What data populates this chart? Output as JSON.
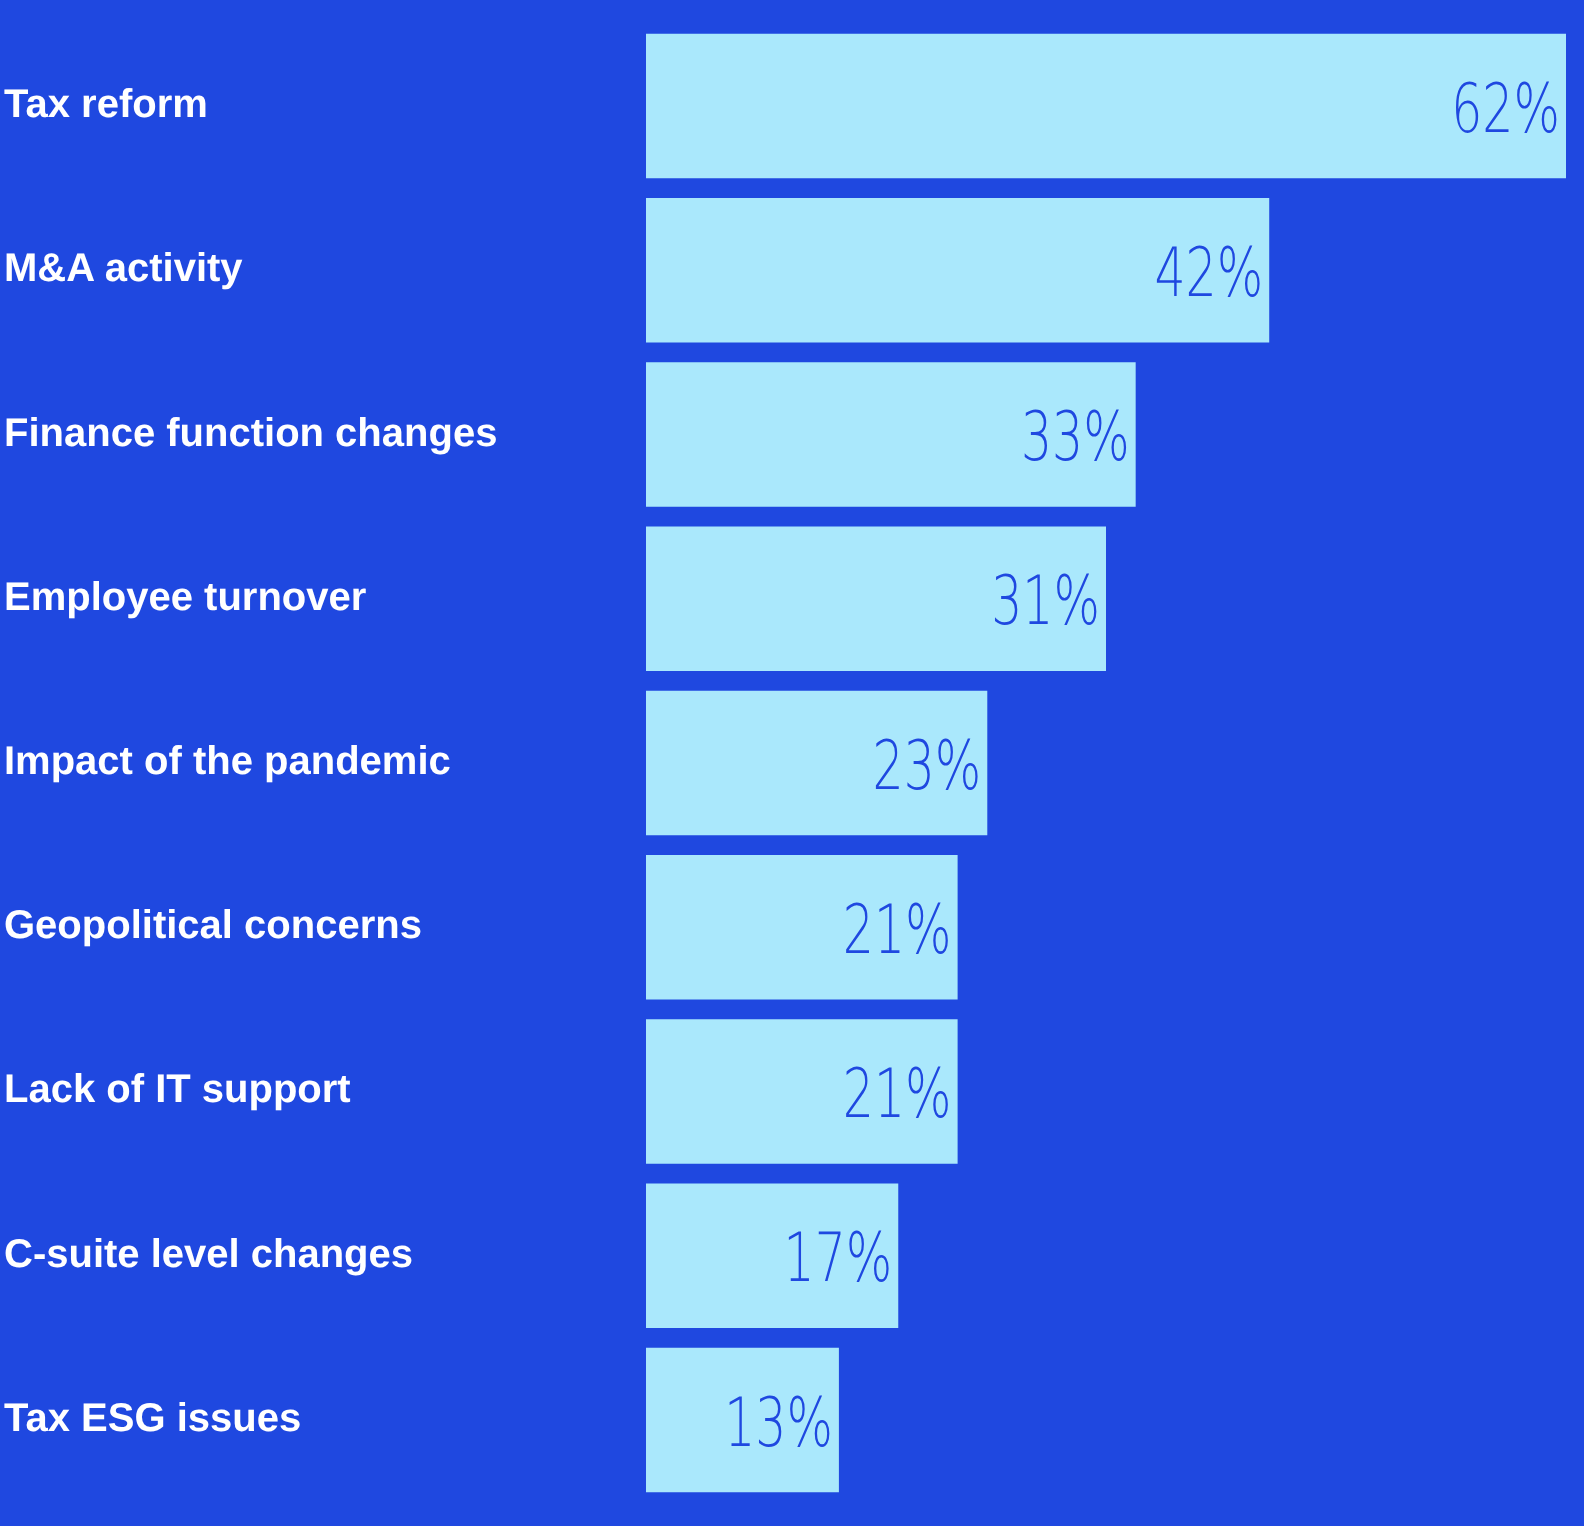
{
  "chart_data": {
    "type": "bar",
    "orientation": "horizontal",
    "categories": [
      "Tax reform",
      "M&A activity",
      "Finance function changes",
      "Employee turnover",
      "Impact of the pandemic",
      "Geopolitical concerns",
      "Lack of IT support",
      "C-suite level changes",
      "Tax ESG issues"
    ],
    "values": [
      62,
      42,
      33,
      31,
      23,
      21,
      21,
      17,
      13
    ],
    "value_labels": [
      "62%",
      "42%",
      "33%",
      "31%",
      "23%",
      "21%",
      "21%",
      "17%",
      "13%"
    ],
    "color": "#aae8fc",
    "legend": false,
    "tick_labels": "y"
  }
}
